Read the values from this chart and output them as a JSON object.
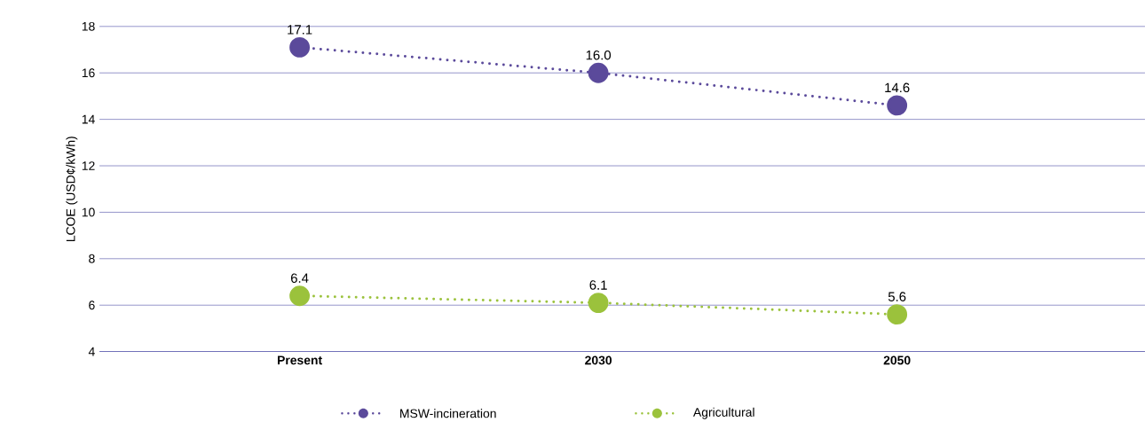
{
  "chart_data": {
    "type": "line",
    "ylabel": "LCOE (USD¢/kWh)",
    "categories": [
      "Present",
      "2030",
      "2050"
    ],
    "series": [
      {
        "name": "MSW-incineration",
        "color": "#5b4a9b",
        "values": [
          17.1,
          16.0,
          14.6
        ],
        "value_labels": [
          "17.1",
          "16.0",
          "14.6"
        ]
      },
      {
        "name": "Agricultural",
        "color": "#9bc23c",
        "values": [
          6.4,
          6.1,
          5.6
        ],
        "value_labels": [
          "6.4",
          "6.1",
          "5.6"
        ]
      }
    ],
    "ylim": [
      4,
      18
    ],
    "yticks": [
      4,
      6,
      8,
      10,
      12,
      14,
      16,
      18
    ],
    "grid": "y",
    "legend": "bottom",
    "marker": "circle",
    "line_style": "dotted"
  }
}
